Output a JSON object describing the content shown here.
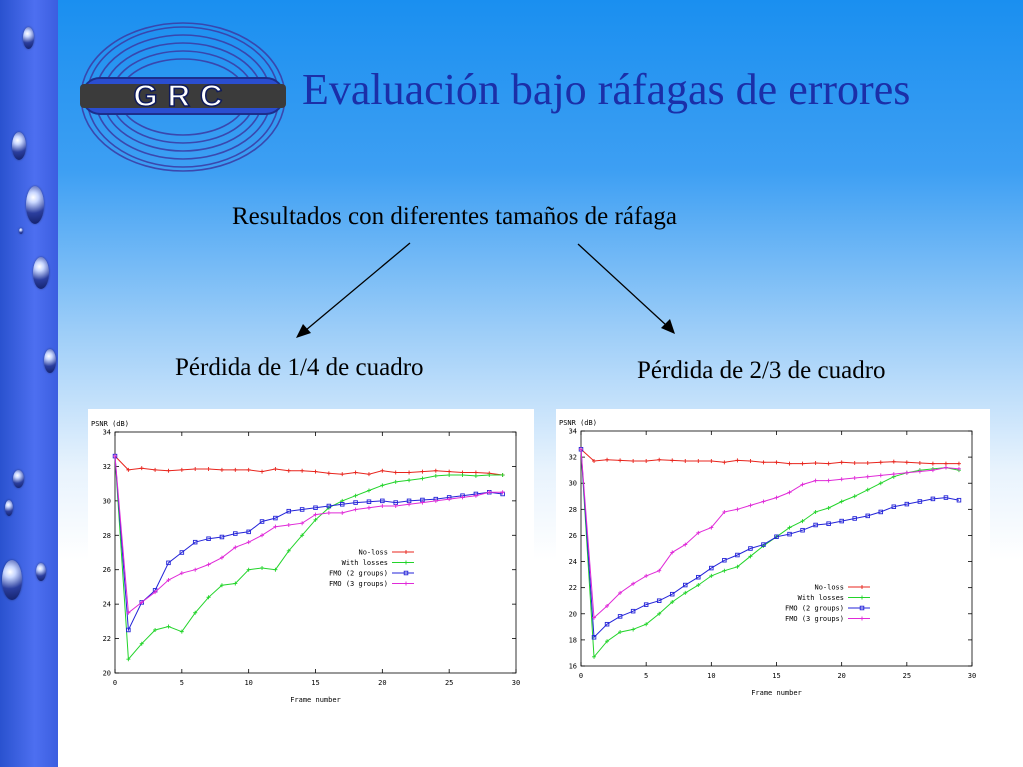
{
  "slide": {
    "title": "Evaluación bajo ráfagas de errores",
    "subtitle": "Resultados con diferentes tamaños de ráfaga",
    "caption_left": "Pérdida de 1/4 de cuadro",
    "caption_right": "Pérdida de 2/3 de cuadro",
    "logo_text": "GRC",
    "colors": {
      "title": "#1b2fa8",
      "sidebar": "#3b5ee0",
      "background_top": "#1a8ff0",
      "no_loss": "#e8241c",
      "with_losses": "#22d42a",
      "fmo2": "#2323d8",
      "fmo3": "#e02ad8"
    }
  },
  "chart_data": [
    {
      "type": "line",
      "ylabel": "PSNR (dB)",
      "xlabel": "Frame number",
      "xlim": [
        0,
        30
      ],
      "ylim": [
        20,
        34
      ],
      "xticks": [
        0,
        5,
        10,
        15,
        20,
        25,
        30
      ],
      "yticks": [
        20,
        22,
        24,
        26,
        28,
        30,
        32,
        34
      ],
      "grid": false,
      "legend_position": "center-right",
      "series": [
        {
          "name": "No-loss",
          "marker": "plus",
          "x": [
            0,
            1,
            2,
            3,
            4,
            5,
            6,
            7,
            8,
            9,
            10,
            11,
            12,
            13,
            14,
            15,
            16,
            17,
            18,
            19,
            20,
            21,
            22,
            23,
            24,
            25,
            26,
            27,
            28,
            29
          ],
          "values": [
            32.6,
            31.8,
            31.9,
            31.8,
            31.75,
            31.8,
            31.85,
            31.85,
            31.8,
            31.8,
            31.8,
            31.7,
            31.85,
            31.75,
            31.75,
            31.7,
            31.6,
            31.55,
            31.65,
            31.55,
            31.75,
            31.65,
            31.65,
            31.7,
            31.75,
            31.7,
            31.65,
            31.65,
            31.6,
            31.5
          ]
        },
        {
          "name": "With losses",
          "marker": "plus",
          "x": [
            0,
            1,
            2,
            3,
            4,
            5,
            6,
            7,
            8,
            9,
            10,
            11,
            12,
            13,
            14,
            15,
            16,
            17,
            18,
            19,
            20,
            21,
            22,
            23,
            24,
            25,
            26,
            27,
            28,
            29
          ],
          "values": [
            32.6,
            20.8,
            21.7,
            22.5,
            22.7,
            22.4,
            23.5,
            24.4,
            25.1,
            25.2,
            26.0,
            26.1,
            26.0,
            27.1,
            28.0,
            28.9,
            29.6,
            30.0,
            30.3,
            30.6,
            30.9,
            31.1,
            31.2,
            31.3,
            31.45,
            31.5,
            31.5,
            31.45,
            31.5,
            31.5
          ]
        },
        {
          "name": "FMO (2 groups)",
          "marker": "square",
          "x": [
            0,
            1,
            2,
            3,
            4,
            5,
            6,
            7,
            8,
            9,
            10,
            11,
            12,
            13,
            14,
            15,
            16,
            17,
            18,
            19,
            20,
            21,
            22,
            23,
            24,
            25,
            26,
            27,
            28,
            29
          ],
          "values": [
            32.6,
            22.5,
            24.1,
            24.8,
            26.4,
            27.0,
            27.6,
            27.8,
            27.9,
            28.1,
            28.2,
            28.8,
            29.0,
            29.4,
            29.5,
            29.6,
            29.7,
            29.8,
            29.9,
            29.95,
            30.0,
            29.9,
            30.0,
            30.05,
            30.1,
            30.2,
            30.3,
            30.4,
            30.5,
            30.4
          ]
        },
        {
          "name": "FMO (3 groups)",
          "marker": "plus",
          "x": [
            0,
            1,
            2,
            3,
            4,
            5,
            6,
            7,
            8,
            9,
            10,
            11,
            12,
            13,
            14,
            15,
            16,
            17,
            18,
            19,
            20,
            21,
            22,
            23,
            24,
            25,
            26,
            27,
            28,
            29
          ],
          "values": [
            32.6,
            23.5,
            24.1,
            24.7,
            25.4,
            25.8,
            26.0,
            26.3,
            26.7,
            27.3,
            27.6,
            28.0,
            28.5,
            28.6,
            28.7,
            29.2,
            29.3,
            29.3,
            29.5,
            29.6,
            29.7,
            29.7,
            29.8,
            29.9,
            30.0,
            30.1,
            30.2,
            30.3,
            30.5,
            30.5
          ]
        }
      ]
    },
    {
      "type": "line",
      "ylabel": "PSNR (dB)",
      "xlabel": "Frame number",
      "xlim": [
        0,
        30
      ],
      "ylim": [
        16,
        34
      ],
      "xticks": [
        0,
        5,
        10,
        15,
        20,
        25,
        30
      ],
      "yticks": [
        16,
        18,
        20,
        22,
        24,
        26,
        28,
        30,
        32,
        34
      ],
      "grid": false,
      "legend_position": "bottom-right",
      "series": [
        {
          "name": "No-loss",
          "marker": "plus",
          "x": [
            0,
            1,
            2,
            3,
            4,
            5,
            6,
            7,
            8,
            9,
            10,
            11,
            12,
            13,
            14,
            15,
            16,
            17,
            18,
            19,
            20,
            21,
            22,
            23,
            24,
            25,
            26,
            27,
            28,
            29
          ],
          "values": [
            32.6,
            31.7,
            31.8,
            31.75,
            31.7,
            31.7,
            31.8,
            31.75,
            31.7,
            31.7,
            31.7,
            31.6,
            31.75,
            31.7,
            31.6,
            31.6,
            31.5,
            31.5,
            31.55,
            31.5,
            31.6,
            31.55,
            31.55,
            31.6,
            31.65,
            31.6,
            31.55,
            31.5,
            31.5,
            31.5
          ]
        },
        {
          "name": "With losses",
          "marker": "plus",
          "x": [
            0,
            1,
            2,
            3,
            4,
            5,
            6,
            7,
            8,
            9,
            10,
            11,
            12,
            13,
            14,
            15,
            16,
            17,
            18,
            19,
            20,
            21,
            22,
            23,
            24,
            25,
            26,
            27,
            28,
            29
          ],
          "values": [
            32.6,
            16.7,
            17.9,
            18.6,
            18.8,
            19.2,
            20.0,
            20.9,
            21.6,
            22.2,
            22.9,
            23.3,
            23.6,
            24.4,
            25.2,
            25.9,
            26.6,
            27.1,
            27.8,
            28.1,
            28.6,
            29.0,
            29.5,
            30.0,
            30.5,
            30.8,
            31.0,
            31.1,
            31.2,
            31.0
          ]
        },
        {
          "name": "FMO (2 groups)",
          "marker": "square",
          "x": [
            0,
            1,
            2,
            3,
            4,
            5,
            6,
            7,
            8,
            9,
            10,
            11,
            12,
            13,
            14,
            15,
            16,
            17,
            18,
            19,
            20,
            21,
            22,
            23,
            24,
            25,
            26,
            27,
            28,
            29
          ],
          "values": [
            32.6,
            18.2,
            19.2,
            19.8,
            20.2,
            20.7,
            21.0,
            21.5,
            22.2,
            22.8,
            23.5,
            24.1,
            24.5,
            25.0,
            25.3,
            25.9,
            26.1,
            26.4,
            26.8,
            26.9,
            27.1,
            27.3,
            27.5,
            27.8,
            28.2,
            28.4,
            28.6,
            28.8,
            28.9,
            28.7
          ]
        },
        {
          "name": "FMO (3 groups)",
          "marker": "plus",
          "x": [
            0,
            1,
            2,
            3,
            4,
            5,
            6,
            7,
            8,
            9,
            10,
            11,
            12,
            13,
            14,
            15,
            16,
            17,
            18,
            19,
            20,
            21,
            22,
            23,
            24,
            25,
            26,
            27,
            28,
            29
          ],
          "values": [
            32.6,
            19.7,
            20.6,
            21.6,
            22.3,
            22.9,
            23.3,
            24.7,
            25.3,
            26.2,
            26.6,
            27.8,
            28.0,
            28.3,
            28.6,
            28.9,
            29.3,
            29.9,
            30.2,
            30.2,
            30.3,
            30.4,
            30.5,
            30.6,
            30.7,
            30.8,
            30.9,
            31.0,
            31.2,
            31.1
          ]
        }
      ]
    }
  ]
}
